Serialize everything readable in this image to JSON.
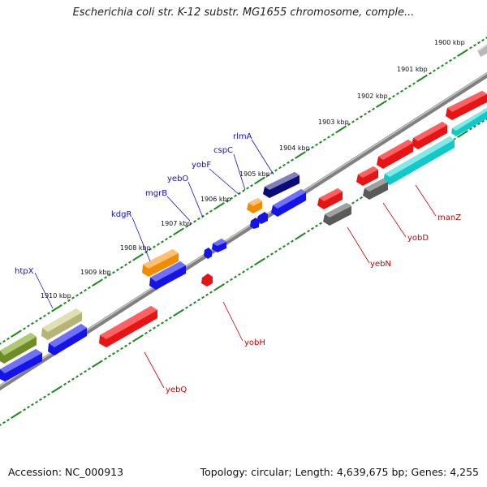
{
  "title": "Escherichia coli str. K-12 substr. MG1655 chromosome, comple...",
  "footer": {
    "accession": "Accession: NC_000913",
    "summary": "Topology: circular; Length: 4,639,675 bp; Genes: 4,255"
  },
  "kbp_labels": [
    "1900 kbp",
    "1901 kbp",
    "1902 kbp",
    "1903 kbp",
    "1904 kbp",
    "1905 kbp",
    "1906 kbp",
    "1907 kbp",
    "1908 kbp",
    "1909 kbp",
    "1910 kbp"
  ],
  "forward_labels": [
    "htpX",
    "kdgR",
    "mgrB",
    "yebO",
    "yobF",
    "cspC",
    "rlmA"
  ],
  "reverse_labels": [
    "yebQ",
    "yobH",
    "yebN",
    "yobD",
    "manZ"
  ],
  "colors": {
    "backbone": "#808080",
    "tick": "#1a8a1a",
    "forward_label": "#1010cc",
    "reverse_label": "#cc0000",
    "cds_blue": "#1414e6",
    "cds_red": "#e61414",
    "cds_orange": "#f08c00",
    "cds_navy": "#0a0a78",
    "cds_gray": "#5a5a5a",
    "cds_cyan": "#14c8c8",
    "cds_olive": "#6e8c28",
    "cds_khaki": "#b4b478"
  }
}
